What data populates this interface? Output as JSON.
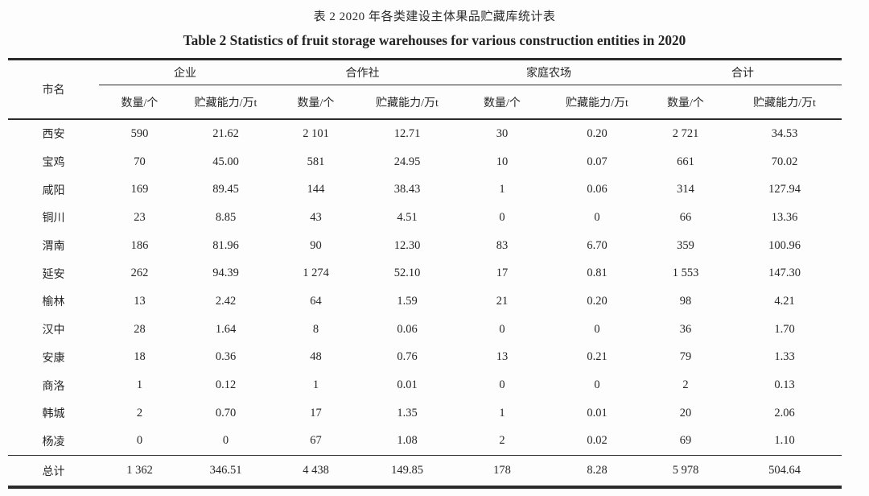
{
  "title_zh": "表 2 2020 年各类建设主体果品贮藏库统计表",
  "title_en": "Table 2 Statistics of fruit storage warehouses for various construction entities in 2020",
  "table": {
    "city_header": "市名",
    "groups": [
      {
        "label": "企业"
      },
      {
        "label": "合作社"
      },
      {
        "label": "家庭农场"
      },
      {
        "label": "合计"
      }
    ],
    "sub_headers": {
      "count": "数量/个",
      "capacity": "贮藏能力/万t"
    },
    "rows": [
      {
        "city": "西安",
        "values": [
          "590",
          "21.62",
          "2 101",
          "12.71",
          "30",
          "0.20",
          "2 721",
          "34.53"
        ]
      },
      {
        "city": "宝鸡",
        "values": [
          "70",
          "45.00",
          "581",
          "24.95",
          "10",
          "0.07",
          "661",
          "70.02"
        ]
      },
      {
        "city": "咸阳",
        "values": [
          "169",
          "89.45",
          "144",
          "38.43",
          "1",
          "0.06",
          "314",
          "127.94"
        ]
      },
      {
        "city": "铜川",
        "values": [
          "23",
          "8.85",
          "43",
          "4.51",
          "0",
          "0",
          "66",
          "13.36"
        ]
      },
      {
        "city": "渭南",
        "values": [
          "186",
          "81.96",
          "90",
          "12.30",
          "83",
          "6.70",
          "359",
          "100.96"
        ]
      },
      {
        "city": "延安",
        "values": [
          "262",
          "94.39",
          "1 274",
          "52.10",
          "17",
          "0.81",
          "1 553",
          "147.30"
        ]
      },
      {
        "city": "榆林",
        "values": [
          "13",
          "2.42",
          "64",
          "1.59",
          "21",
          "0.20",
          "98",
          "4.21"
        ]
      },
      {
        "city": "汉中",
        "values": [
          "28",
          "1.64",
          "8",
          "0.06",
          "0",
          "0",
          "36",
          "1.70"
        ]
      },
      {
        "city": "安康",
        "values": [
          "18",
          "0.36",
          "48",
          "0.76",
          "13",
          "0.21",
          "79",
          "1.33"
        ]
      },
      {
        "city": "商洛",
        "values": [
          "1",
          "0.12",
          "1",
          "0.01",
          "0",
          "0",
          "2",
          "0.13"
        ]
      },
      {
        "city": "韩城",
        "values": [
          "2",
          "0.70",
          "17",
          "1.35",
          "1",
          "0.01",
          "20",
          "2.06"
        ]
      },
      {
        "city": "杨凌",
        "values": [
          "0",
          "0",
          "67",
          "1.08",
          "2",
          "0.02",
          "69",
          "1.10"
        ]
      }
    ],
    "total_row": {
      "city": "总计",
      "values": [
        "1 362",
        "346.51",
        "4 438",
        "149.85",
        "178",
        "8.28",
        "5 978",
        "504.64"
      ]
    }
  },
  "chart_data": {
    "type": "table",
    "title": "表 2 2020 年各类建设主体果品贮藏库统计表 / Table 2 Statistics of fruit storage warehouses for various construction entities in 2020",
    "column_groups": [
      "企业",
      "合作社",
      "家庭农场",
      "合计"
    ],
    "columns": [
      "市名",
      "企业 数量/个",
      "企业 贮藏能力/万t",
      "合作社 数量/个",
      "合作社 贮藏能力/万t",
      "家庭农场 数量/个",
      "家庭农场 贮藏能力/万t",
      "合计 数量/个",
      "合计 贮藏能力/万t"
    ],
    "rows": [
      [
        "西安",
        590,
        21.62,
        2101,
        12.71,
        30,
        0.2,
        2721,
        34.53
      ],
      [
        "宝鸡",
        70,
        45.0,
        581,
        24.95,
        10,
        0.07,
        661,
        70.02
      ],
      [
        "咸阳",
        169,
        89.45,
        144,
        38.43,
        1,
        0.06,
        314,
        127.94
      ],
      [
        "铜川",
        23,
        8.85,
        43,
        4.51,
        0,
        0,
        66,
        13.36
      ],
      [
        "渭南",
        186,
        81.96,
        90,
        12.3,
        83,
        6.7,
        359,
        100.96
      ],
      [
        "延安",
        262,
        94.39,
        1274,
        52.1,
        17,
        0.81,
        1553,
        147.3
      ],
      [
        "榆林",
        13,
        2.42,
        64,
        1.59,
        21,
        0.2,
        98,
        4.21
      ],
      [
        "汉中",
        28,
        1.64,
        8,
        0.06,
        0,
        0,
        36,
        1.7
      ],
      [
        "安康",
        18,
        0.36,
        48,
        0.76,
        13,
        0.21,
        79,
        1.33
      ],
      [
        "商洛",
        1,
        0.12,
        1,
        0.01,
        0,
        0,
        2,
        0.13
      ],
      [
        "韩城",
        2,
        0.7,
        17,
        1.35,
        1,
        0.01,
        20,
        2.06
      ],
      [
        "杨凌",
        0,
        0,
        67,
        1.08,
        2,
        0.02,
        69,
        1.1
      ],
      [
        "总计",
        1362,
        346.51,
        4438,
        149.85,
        178,
        8.28,
        5978,
        504.64
      ]
    ]
  },
  "colors": {
    "text": "#262626",
    "rule": "#2b2b2b",
    "background": "#fdfdfd"
  }
}
